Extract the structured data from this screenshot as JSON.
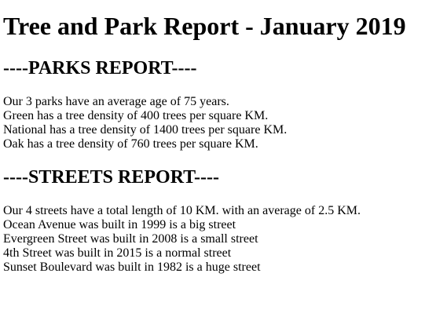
{
  "report": {
    "title": "Tree and Park Report - January 2019"
  },
  "parks": {
    "heading": "----PARKS REPORT----",
    "lines": [
      "Our 3 parks have an average age of 75 years.",
      "Green has a tree density of 400 trees per square KM.",
      "National has a tree density of 1400 trees per square KM.",
      "Oak has a tree density of 760 trees per square KM."
    ]
  },
  "streets": {
    "heading": "----STREETS REPORT----",
    "lines": [
      "Our 4 streets have a total length of 10 KM. with an average of 2.5 KM.",
      "Ocean Avenue was built in 1999 is a big street",
      "Evergreen Street was built in 2008 is a small street",
      "4th Street was built in 2015 is a normal street",
      "Sunset Boulevard was built in 1982 is a huge street"
    ]
  }
}
